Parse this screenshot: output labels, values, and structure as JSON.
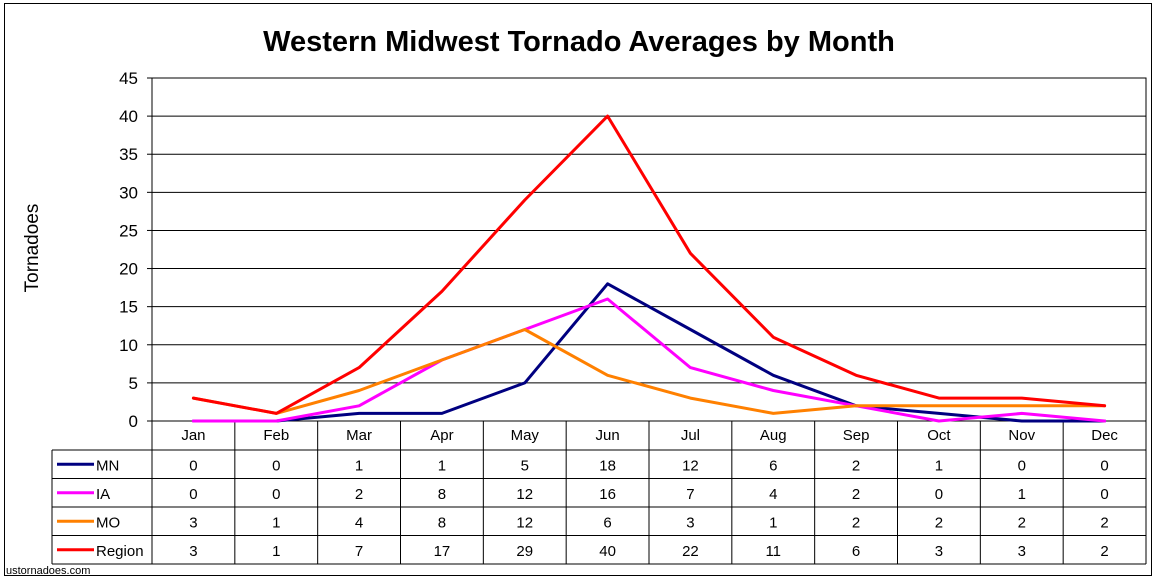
{
  "source": "ustornadoes.com",
  "chart_data": {
    "type": "line",
    "title": "Western Midwest Tornado Averages by Month",
    "xlabel": "",
    "ylabel": "Tornadoes",
    "ylim": [
      0,
      45
    ],
    "yticks": [
      0,
      5,
      10,
      15,
      20,
      25,
      30,
      35,
      40,
      45
    ],
    "grid": "horizontal",
    "legend": "data-table",
    "categories": [
      "Jan",
      "Feb",
      "Mar",
      "Apr",
      "May",
      "Jun",
      "Jul",
      "Aug",
      "Sep",
      "Oct",
      "Nov",
      "Dec"
    ],
    "series": [
      {
        "name": "MN",
        "color": "#000080",
        "values": [
          0,
          0,
          1,
          1,
          5,
          18,
          12,
          6,
          2,
          1,
          0,
          0
        ]
      },
      {
        "name": "IA",
        "color": "#ff00ff",
        "values": [
          0,
          0,
          2,
          8,
          12,
          16,
          7,
          4,
          2,
          0,
          1,
          0
        ]
      },
      {
        "name": "MO",
        "color": "#ff8000",
        "values": [
          3,
          1,
          4,
          8,
          12,
          6,
          3,
          1,
          2,
          2,
          2,
          2
        ]
      },
      {
        "name": "Region",
        "color": "#ff0000",
        "values": [
          3,
          1,
          7,
          17,
          29,
          40,
          22,
          11,
          6,
          3,
          3,
          2
        ]
      }
    ]
  }
}
